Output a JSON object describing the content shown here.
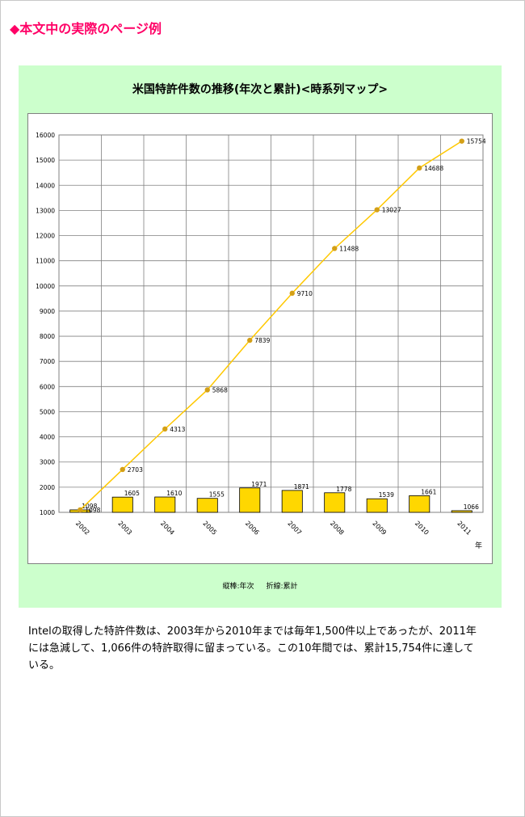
{
  "heading": "◆本文中の実際のページ例",
  "colors": {
    "heading": "#ff0066",
    "panel": "#ccffcc",
    "bar": "#ffd700",
    "line": "#ffc800",
    "marker": "#d4a017"
  },
  "chart_data": {
    "type": "bar+line",
    "title": "米国特許件数の推移(年次と累計)<時系列マップ>",
    "categories": [
      "2002",
      "2003",
      "2004",
      "2005",
      "2006",
      "2007",
      "2008",
      "2009",
      "2010",
      "2011"
    ],
    "xlabel": "年",
    "ylim": [
      1000,
      16000
    ],
    "yticks": [
      1000,
      2000,
      3000,
      4000,
      5000,
      6000,
      7000,
      8000,
      9000,
      10000,
      11000,
      12000,
      13000,
      14000,
      15000,
      16000
    ],
    "grid": true,
    "series": [
      {
        "name": "年次",
        "kind": "bar",
        "values": [
          1098,
          1605,
          1610,
          1555,
          1971,
          1871,
          1778,
          1539,
          1661,
          1066
        ],
        "labels": [
          "1098",
          "1605",
          "1610",
          "1555",
          "1971",
          "1871",
          "1778",
          "1539",
          "1661",
          "1066"
        ]
      },
      {
        "name": "累計",
        "kind": "line",
        "values": [
          1098,
          2703,
          4313,
          5868,
          7839,
          9710,
          11488,
          13027,
          14688,
          15754
        ],
        "labels": [
          "1098",
          "2703",
          "4313",
          "5868",
          "7839",
          "9710",
          "11488",
          "13027",
          "14688",
          "15754"
        ]
      }
    ],
    "legend_text": [
      "縦棒:年次",
      "折線:累計"
    ]
  },
  "body": {
    "paragraph": "Intelの取得した特許件数は、2003年から2010年までは毎年1,500件以上であったが、2011年には急減して、1,066件の特許取得に留まっている。この10年間では、累計15,754件に達している。"
  }
}
